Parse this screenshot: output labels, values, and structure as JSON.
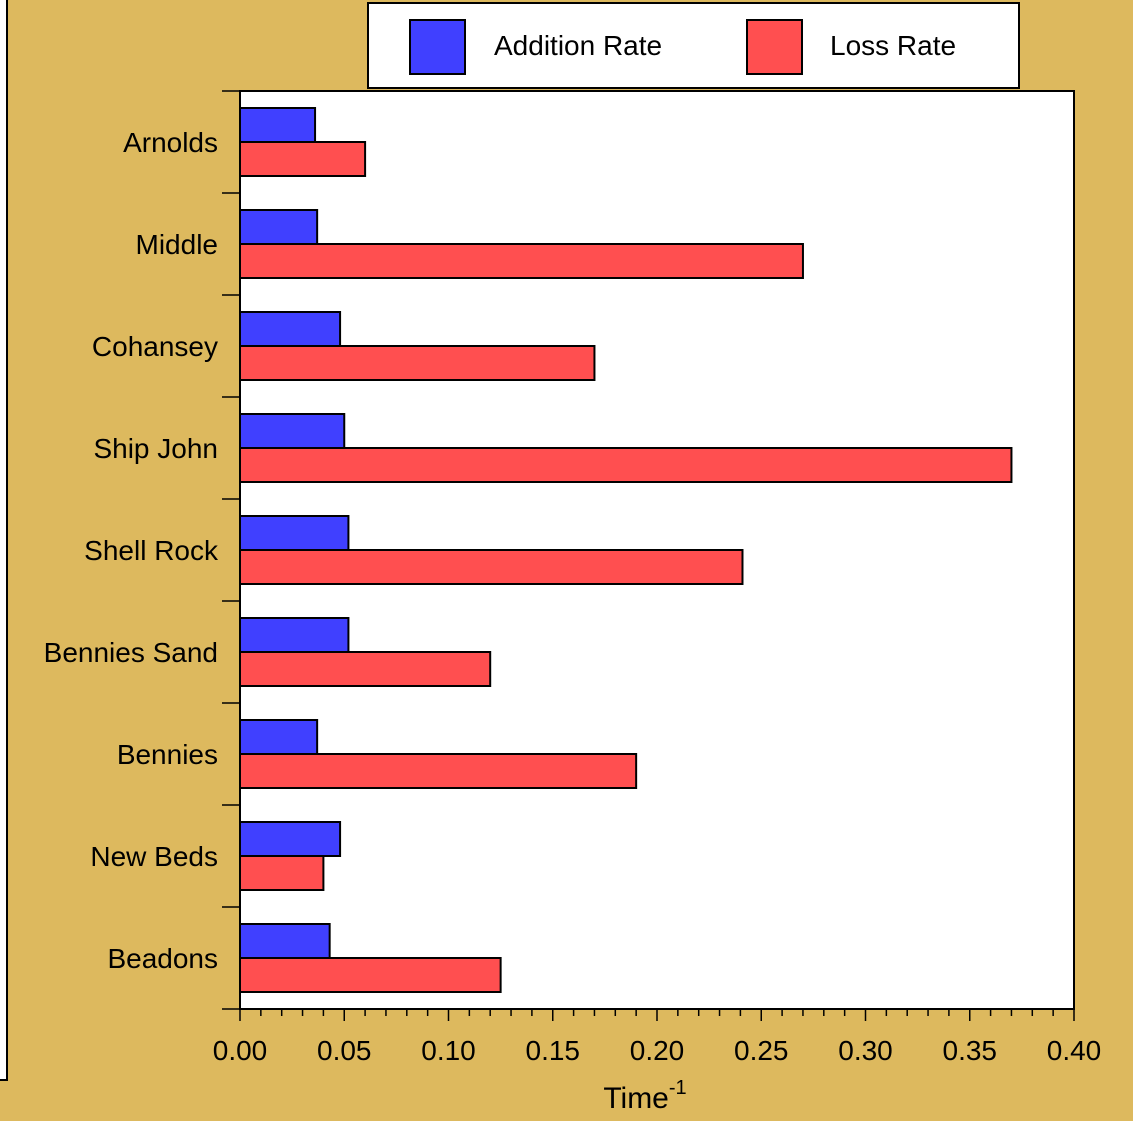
{
  "chart_data": {
    "type": "bar",
    "orientation": "horizontal",
    "categories": [
      "Arnolds",
      "Middle",
      "Cohansey",
      "Ship John",
      "Shell Rock",
      "Bennies Sand",
      "Bennies",
      "New Beds",
      "Beadons"
    ],
    "series": [
      {
        "name": "Addition Rate",
        "color": "#4040FF",
        "values": [
          0.036,
          0.037,
          0.048,
          0.05,
          0.052,
          0.052,
          0.037,
          0.048,
          0.043
        ]
      },
      {
        "name": "Loss Rate",
        "color": "#FF4F50",
        "values": [
          0.06,
          0.27,
          0.17,
          0.37,
          0.241,
          0.12,
          0.19,
          0.04,
          0.125
        ]
      }
    ],
    "xlim": [
      0,
      0.4
    ],
    "xticks": [
      "0.00",
      "0.05",
      "0.10",
      "0.15",
      "0.20",
      "0.25",
      "0.30",
      "0.35",
      "0.40"
    ],
    "xlabel": "Time",
    "xlabel_superscript": "-1",
    "ylabel": "",
    "title": "",
    "legend_position": "top-right",
    "grid": false,
    "background_color": "#DDB95E",
    "plot_background": "#FFFFFF"
  }
}
